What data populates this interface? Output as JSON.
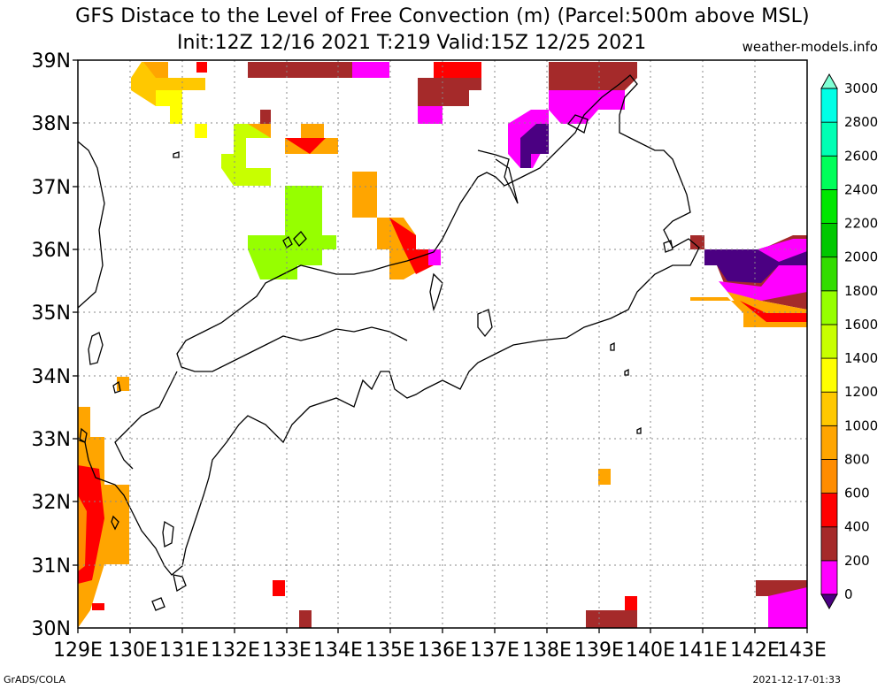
{
  "title": {
    "line1": "GFS Distace to the Level of Free Convection (m) (Parcel:500m above MSL)",
    "line2": "Init:12Z 12/16 2021 T:219 Valid:15Z 12/25 2021",
    "site": "weather-models.info"
  },
  "footer": {
    "left": "GrADS/COLA",
    "right": "2021-12-17-01:33"
  },
  "map": {
    "lon_range": [
      129,
      143
    ],
    "lat_range": [
      30,
      39
    ],
    "lon_labels": [
      "129E",
      "130E",
      "131E",
      "132E",
      "133E",
      "134E",
      "135E",
      "136E",
      "137E",
      "138E",
      "139E",
      "140E",
      "141E",
      "142E",
      "143E"
    ],
    "lat_labels": [
      "30N",
      "31N",
      "32N",
      "33N",
      "34N",
      "35N",
      "36N",
      "37N",
      "38N",
      "39N"
    ],
    "grid": "dotted"
  },
  "colorbar": {
    "unit": "m",
    "levels": [
      {
        "value": "0",
        "color": "#7a2fb8"
      },
      {
        "value": "200",
        "color": "#ff00ff"
      },
      {
        "value": "400",
        "color": "#a52a2a"
      },
      {
        "value": "600",
        "color": "#ff0000"
      },
      {
        "value": "800",
        "color": "#ff8c00"
      },
      {
        "value": "1000",
        "color": "#ffa500"
      },
      {
        "value": "1200",
        "color": "#ffc800"
      },
      {
        "value": "1400",
        "color": "#ffff00"
      },
      {
        "value": "1600",
        "color": "#c8ff00"
      },
      {
        "value": "1800",
        "color": "#96ff00"
      },
      {
        "value": "2000",
        "color": "#32dc00"
      },
      {
        "value": "2200",
        "color": "#00c800"
      },
      {
        "value": "2400",
        "color": "#00e600"
      },
      {
        "value": "2600",
        "color": "#00ff5a"
      },
      {
        "value": "2800",
        "color": "#00ffb4"
      },
      {
        "value": "3000",
        "color": "#00ffe6"
      }
    ],
    "below_color": "#4b0082",
    "above_color": "#7fffd4"
  }
}
